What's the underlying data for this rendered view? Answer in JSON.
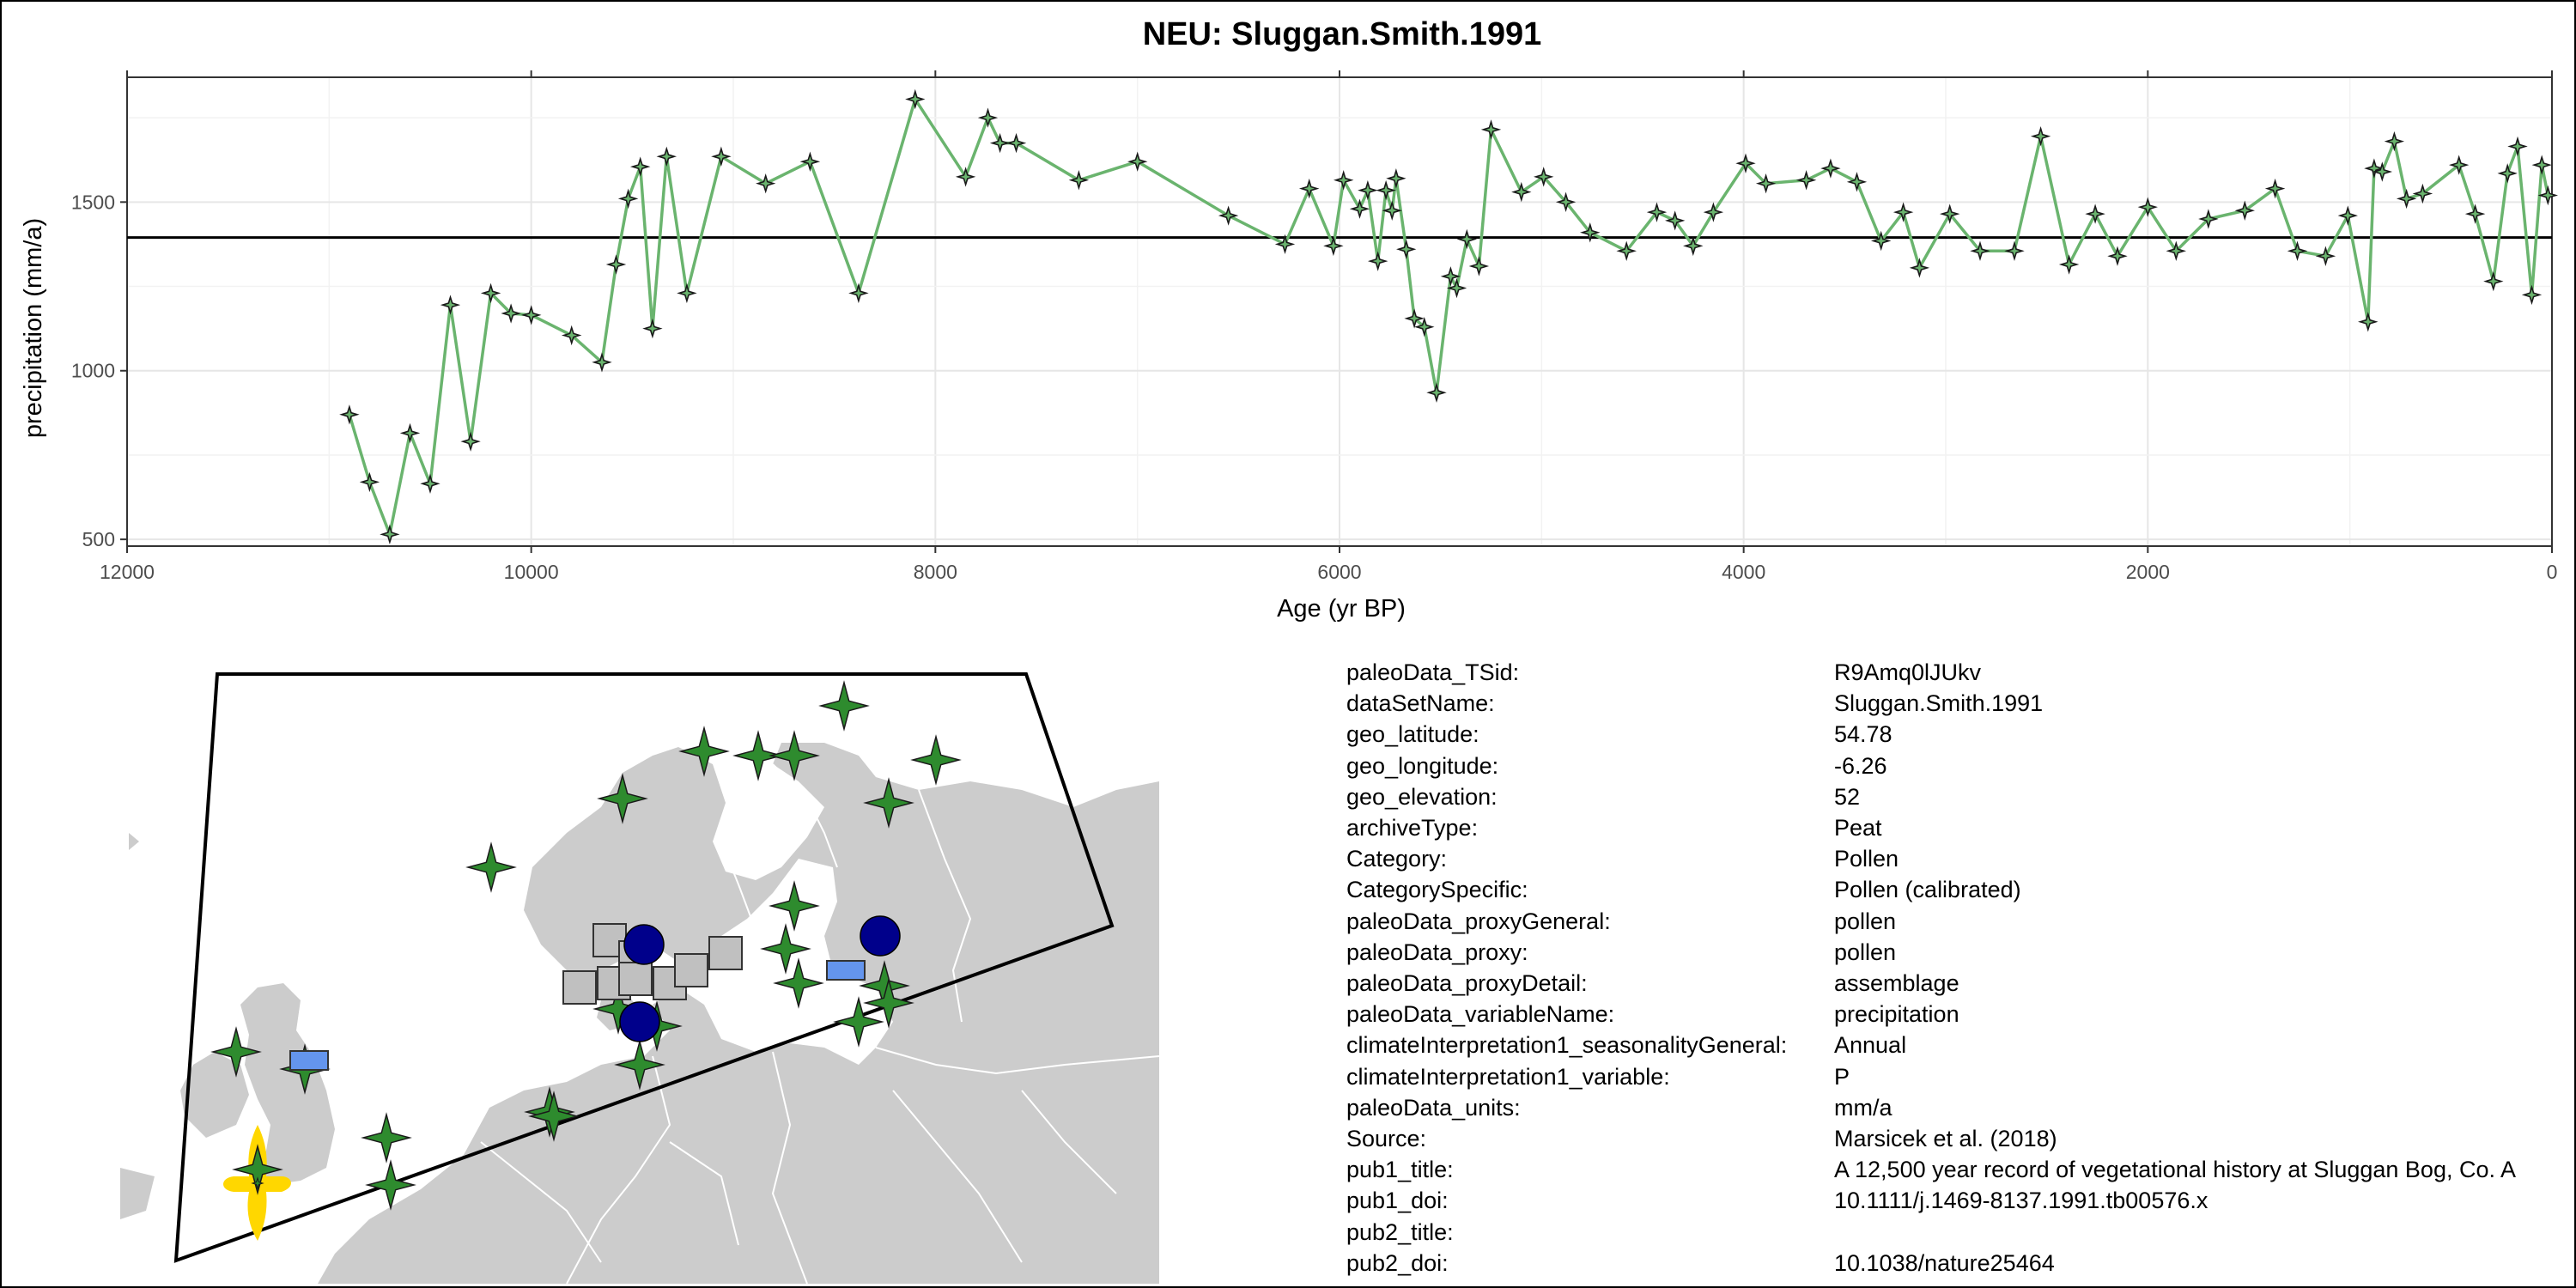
{
  "chart_data": {
    "type": "line",
    "title": "NEU: Sluggan.Smith.1991",
    "xlabel": "Age (yr BP)",
    "ylabel": "precipitation (mm/a)",
    "x_reversed": true,
    "xlim": [
      12000,
      0
    ],
    "ylim": [
      480,
      1870
    ],
    "x_ticks": [
      12000,
      10000,
      8000,
      6000,
      4000,
      2000,
      0
    ],
    "y_ticks": [
      500,
      1000,
      1500
    ],
    "reference_line_y": 1395,
    "grid": true,
    "series": [
      {
        "color": "#6ab46e",
        "x": [
          10900,
          10800,
          10700,
          10600,
          10500,
          10400,
          10300,
          10200,
          10100,
          10000,
          9800,
          9650,
          9580,
          9520,
          9460,
          9400,
          9330,
          9230,
          9060,
          8840,
          8620,
          8380,
          8100,
          7850,
          7740,
          7680,
          7600,
          7290,
          7000,
          6550,
          6270,
          6150,
          6030,
          5980,
          5900,
          5860,
          5810,
          5770,
          5740,
          5720,
          5670,
          5630,
          5580,
          5520,
          5450,
          5420,
          5370,
          5310,
          5250,
          5100,
          4990,
          4880,
          4760,
          4580,
          4430,
          4340,
          4250,
          4150,
          3990,
          3890,
          3690,
          3570,
          3440,
          3320,
          3210,
          3130,
          2980,
          2830,
          2660,
          2530,
          2390,
          2260,
          2150,
          2000,
          1860,
          1700,
          1520,
          1370,
          1260,
          1120,
          1010,
          910,
          880,
          840,
          780,
          720,
          640,
          460,
          380,
          290,
          220,
          170,
          100,
          50,
          20
        ],
        "y": [
          870,
          670,
          515,
          815,
          665,
          1195,
          790,
          1230,
          1170,
          1165,
          1105,
          1025,
          1315,
          1510,
          1605,
          1125,
          1635,
          1230,
          1635,
          1555,
          1620,
          1230,
          1805,
          1575,
          1750,
          1675,
          1675,
          1565,
          1620,
          1460,
          1375,
          1540,
          1370,
          1565,
          1480,
          1535,
          1325,
          1535,
          1475,
          1570,
          1360,
          1155,
          1130,
          935,
          1280,
          1245,
          1390,
          1310,
          1715,
          1530,
          1575,
          1500,
          1410,
          1355,
          1470,
          1445,
          1370,
          1470,
          1615,
          1555,
          1565,
          1600,
          1560,
          1385,
          1470,
          1305,
          1465,
          1355,
          1355,
          1695,
          1315,
          1465,
          1340,
          1485,
          1355,
          1450,
          1475,
          1540,
          1355,
          1340,
          1460,
          1145,
          1600,
          1590,
          1680,
          1510,
          1525,
          1610,
          1465,
          1265,
          1585,
          1665,
          1225,
          1610,
          1520
        ]
      }
    ]
  },
  "map": {
    "land_color": "#cccccc",
    "water_color": "#ffffff",
    "border_color": "#ffffff",
    "frame_color": "#000000",
    "highlight_color": "#ffd700",
    "marker_colors": {
      "green-star": "#2e8b2e",
      "gray-square": "#c0c0c0",
      "blue-circle": "#00008b",
      "lightblue-rect": "#6495ed"
    },
    "markers": [
      {
        "type": "green-star"
      },
      {
        "type": "green-star"
      },
      {
        "type": "green-star"
      },
      {
        "type": "green-star"
      },
      {
        "type": "green-star"
      },
      {
        "type": "green-star"
      },
      {
        "type": "green-star"
      },
      {
        "type": "green-star"
      },
      {
        "type": "green-star"
      },
      {
        "type": "green-star"
      },
      {
        "type": "green-star"
      },
      {
        "type": "green-star"
      },
      {
        "type": "green-star"
      },
      {
        "type": "green-star"
      },
      {
        "type": "green-star"
      },
      {
        "type": "green-star"
      },
      {
        "type": "green-star"
      },
      {
        "type": "green-star"
      },
      {
        "type": "green-star"
      },
      {
        "type": "green-star"
      },
      {
        "type": "green-star"
      },
      {
        "type": "green-star"
      },
      {
        "type": "green-star"
      },
      {
        "type": "green-star"
      },
      {
        "type": "gray-square"
      },
      {
        "type": "gray-square"
      },
      {
        "type": "gray-square"
      },
      {
        "type": "gray-square"
      },
      {
        "type": "gray-square"
      },
      {
        "type": "gray-square"
      },
      {
        "type": "gray-square"
      },
      {
        "type": "gray-square"
      },
      {
        "type": "blue-circle"
      },
      {
        "type": "blue-circle"
      },
      {
        "type": "blue-circle"
      },
      {
        "type": "lightblue-rect"
      },
      {
        "type": "lightblue-rect"
      }
    ]
  },
  "metadata": [
    {
      "key": "paleoData_TSid:",
      "value": "R9Amq0lJUkv"
    },
    {
      "key": "dataSetName:",
      "value": "Sluggan.Smith.1991"
    },
    {
      "key": "geo_latitude:",
      "value": "54.78"
    },
    {
      "key": "geo_longitude:",
      "value": "-6.26"
    },
    {
      "key": "geo_elevation:",
      "value": "52"
    },
    {
      "key": "archiveType:",
      "value": "Peat"
    },
    {
      "key": "Category:",
      "value": "Pollen"
    },
    {
      "key": "CategorySpecific:",
      "value": "Pollen (calibrated)"
    },
    {
      "key": "paleoData_proxyGeneral:",
      "value": "pollen"
    },
    {
      "key": "paleoData_proxy:",
      "value": "pollen"
    },
    {
      "key": "paleoData_proxyDetail:",
      "value": "assemblage"
    },
    {
      "key": "paleoData_variableName:",
      "value": "precipitation"
    },
    {
      "key": "climateInterpretation1_seasonalityGeneral:",
      "value": "Annual"
    },
    {
      "key": "climateInterpretation1_variable:",
      "value": "P"
    },
    {
      "key": "paleoData_units:",
      "value": "mm/a"
    },
    {
      "key": "Source:",
      "value": "Marsicek et al. (2018)"
    },
    {
      "key": "pub1_title:",
      "value": "A 12,500 year record of vegetational history at Sluggan Bog, Co. A"
    },
    {
      "key": "pub1_doi:",
      "value": "10.1111/j.1469-8137.1991.tb00576.x"
    },
    {
      "key": "pub2_title:",
      "value": ""
    },
    {
      "key": "pub2_doi:",
      "value": "10.1038/nature25464"
    }
  ]
}
